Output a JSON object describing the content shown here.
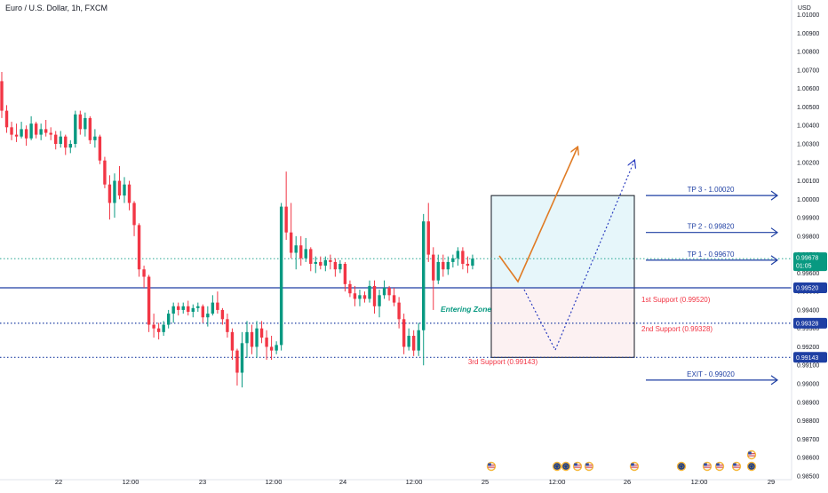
{
  "header": {
    "title": "Euro / U.S. Dollar, 1h, FXCM",
    "currency": "USD"
  },
  "chart_data": {
    "type": "candlestick",
    "yaxis": {
      "ylim": [
        0.9848,
        1.0108
      ],
      "ticks": [
        "1.01000",
        "1.00900",
        "1.00800",
        "1.00700",
        "1.00600",
        "1.00500",
        "1.00400",
        "1.00300",
        "1.00200",
        "1.00100",
        "1.00000",
        "0.99900",
        "0.99800",
        "0.99700",
        "0.99600",
        "0.99500",
        "0.99400",
        "0.99300",
        "0.99200",
        "0.99100",
        "0.99000",
        "0.98900",
        "0.98800",
        "0.98700",
        "0.98600",
        "0.98500"
      ]
    },
    "xaxis": {
      "ticks": [
        "22",
        "12:00",
        "23",
        "12:00",
        "24",
        "12:00",
        "25",
        "12:00",
        "26",
        "12:00",
        "29"
      ]
    },
    "current_price": {
      "value": "0.99678",
      "timer": "01:05",
      "color": "#089981"
    },
    "price_badges": [
      {
        "value": "0.99520",
        "color": "#1e3fa3"
      },
      {
        "value": "0.99328",
        "color": "#1e3fa3"
      },
      {
        "value": "0.99143",
        "color": "#1e3fa3"
      }
    ],
    "horizontal_lines": [
      {
        "price": 0.9952,
        "style": "solid",
        "color": "#1e3fa3"
      },
      {
        "price": 0.99328,
        "style": "dotted",
        "color": "#1e3fa3"
      },
      {
        "price": 0.99143,
        "style": "dotted",
        "color": "#1e3fa3"
      },
      {
        "price": 0.99678,
        "style": "dotted",
        "color": "#089981"
      }
    ],
    "zones": [
      {
        "name": "profit-zone",
        "from": 0.9952,
        "to": 1.0002,
        "fill": "#e6f6fa"
      },
      {
        "name": "risk-zone",
        "from": 0.99143,
        "to": 0.9952,
        "fill": "#fcf1f2"
      }
    ],
    "targets": [
      {
        "label": "TP 3 - 1.00020",
        "price": 1.0002
      },
      {
        "label": "TP 2 - 0.99820",
        "price": 0.9982
      },
      {
        "label": "TP 1 - 0.99670",
        "price": 0.9967
      },
      {
        "label": "EXIT - 0.99020",
        "price": 0.9902
      }
    ],
    "supports": [
      {
        "label": "1st Support (0.99520)",
        "price": 0.9952
      },
      {
        "label": "2nd Support (0.99328)",
        "price": 0.99328
      },
      {
        "label": "3rd Support (0.99143)",
        "price": 0.99143
      }
    ],
    "annotations": {
      "entering_zone": "Entering Zone"
    },
    "colors": {
      "up": "#089981",
      "down": "#f23645",
      "target": "#1e3fa3",
      "support_text": "#f23645",
      "arrow": "#e07b24"
    },
    "candles": [
      [
        1.0064,
        1.0069,
        1.0044,
        1.0048
      ],
      [
        1.0048,
        1.0051,
        1.0036,
        1.0039
      ],
      [
        1.0039,
        1.0042,
        1.0032,
        1.0035
      ],
      [
        1.0035,
        1.0041,
        1.0031,
        1.0034
      ],
      [
        1.0034,
        1.0042,
        1.0033,
        1.0038
      ],
      [
        1.0038,
        1.004,
        1.0029,
        1.0033
      ],
      [
        1.0033,
        1.0045,
        1.0032,
        1.0041
      ],
      [
        1.0041,
        1.0042,
        1.0033,
        1.0035
      ],
      [
        1.0035,
        1.0041,
        1.0032,
        1.0038
      ],
      [
        1.0038,
        1.0043,
        1.0034,
        1.0036
      ],
      [
        1.0036,
        1.0039,
        1.0032,
        1.0035
      ],
      [
        1.0035,
        1.0037,
        1.0027,
        1.003
      ],
      [
        1.003,
        1.0037,
        1.0028,
        1.0034
      ],
      [
        1.0034,
        1.0035,
        1.0024,
        1.0028
      ],
      [
        1.0028,
        1.0032,
        1.0025,
        1.003
      ],
      [
        1.003,
        1.0048,
        1.0028,
        1.0046
      ],
      [
        1.0046,
        1.0048,
        1.0035,
        1.0038
      ],
      [
        1.0038,
        1.0047,
        1.0034,
        1.0044
      ],
      [
        1.0044,
        1.0045,
        1.003,
        1.0032
      ],
      [
        1.0032,
        1.0038,
        1.0028,
        1.0034
      ],
      [
        1.0034,
        1.0035,
        1.0019,
        1.0021
      ],
      [
        1.0021,
        1.0023,
        1.0006,
        1.0008
      ],
      [
        1.0008,
        1.0013,
        0.9989,
        0.9998
      ],
      [
        0.9998,
        1.0014,
        0.999,
        1.001
      ],
      [
        1.001,
        1.0018,
        1.0,
        1.0002
      ],
      [
        1.0002,
        1.0012,
        0.9998,
        1.0008
      ],
      [
        1.0008,
        1.001,
        0.9994,
        0.9998
      ],
      [
        0.9998,
        0.9999,
        0.998,
        0.9986
      ],
      [
        0.9986,
        0.9987,
        0.9958,
        0.9962
      ],
      [
        0.9962,
        0.9964,
        0.9952,
        0.9958
      ],
      [
        0.9958,
        0.9959,
        0.9928,
        0.9932
      ],
      [
        0.9932,
        0.9938,
        0.9925,
        0.993
      ],
      [
        0.993,
        0.9933,
        0.9924,
        0.9928
      ],
      [
        0.9928,
        0.9934,
        0.9926,
        0.9932
      ],
      [
        0.9932,
        0.994,
        0.993,
        0.9938
      ],
      [
        0.9938,
        0.9944,
        0.9933,
        0.9942
      ],
      [
        0.9942,
        0.9944,
        0.9937,
        0.994
      ],
      [
        0.994,
        0.9944,
        0.9938,
        0.9942
      ],
      [
        0.9942,
        0.9945,
        0.9937,
        0.9939
      ],
      [
        0.9939,
        0.9943,
        0.9936,
        0.9941
      ],
      [
        0.9941,
        0.9944,
        0.9939,
        0.9942
      ],
      [
        0.9942,
        0.9943,
        0.9933,
        0.9936
      ],
      [
        0.9936,
        0.9942,
        0.9931,
        0.9938
      ],
      [
        0.9938,
        0.9948,
        0.9937,
        0.9944
      ],
      [
        0.9944,
        0.995,
        0.9938,
        0.994
      ],
      [
        0.994,
        0.9941,
        0.9932,
        0.9935
      ],
      [
        0.9935,
        0.9938,
        0.9925,
        0.9928
      ],
      [
        0.9928,
        0.993,
        0.9913,
        0.9918
      ],
      [
        0.9918,
        0.9919,
        0.9899,
        0.9906
      ],
      [
        0.9906,
        0.9928,
        0.9898,
        0.9922
      ],
      [
        0.9922,
        0.9934,
        0.9914,
        0.9928
      ],
      [
        0.9928,
        0.9932,
        0.9916,
        0.992
      ],
      [
        0.992,
        0.9934,
        0.9914,
        0.993
      ],
      [
        0.993,
        0.9934,
        0.9922,
        0.9925
      ],
      [
        0.9925,
        0.9929,
        0.9913,
        0.992
      ],
      [
        0.992,
        0.9926,
        0.9913,
        0.9918
      ],
      [
        0.9918,
        0.9923,
        0.9916,
        0.9921
      ],
      [
        0.9921,
        0.9998,
        0.9918,
        0.9996
      ],
      [
        0.9996,
        1.0015,
        0.9978,
        0.9982
      ],
      [
        0.9982,
        0.9998,
        0.9968,
        0.9971
      ],
      [
        0.9971,
        0.998,
        0.9962,
        0.9975
      ],
      [
        0.9975,
        0.998,
        0.9964,
        0.9968
      ],
      [
        0.9968,
        0.9979,
        0.9966,
        0.9973
      ],
      [
        0.9973,
        0.9974,
        0.9961,
        0.9965
      ],
      [
        0.9965,
        0.9969,
        0.996,
        0.9966
      ],
      [
        0.9966,
        0.9969,
        0.9962,
        0.9964
      ],
      [
        0.9964,
        0.9969,
        0.9961,
        0.9967
      ],
      [
        0.9967,
        0.997,
        0.9962,
        0.9966
      ],
      [
        0.9966,
        0.9968,
        0.9958,
        0.9962
      ],
      [
        0.9962,
        0.9967,
        0.996,
        0.9965
      ],
      [
        0.9965,
        0.9966,
        0.995,
        0.9954
      ],
      [
        0.9954,
        0.9956,
        0.9947,
        0.9949
      ],
      [
        0.9949,
        0.9953,
        0.9942,
        0.9946
      ],
      [
        0.9946,
        0.9951,
        0.9942,
        0.9948
      ],
      [
        0.9948,
        0.995,
        0.9944,
        0.9946
      ],
      [
        0.9946,
        0.9956,
        0.9944,
        0.9953
      ],
      [
        0.9953,
        0.9956,
        0.9938,
        0.9942
      ],
      [
        0.9942,
        0.9951,
        0.9936,
        0.9948
      ],
      [
        0.9948,
        0.9956,
        0.9946,
        0.9952
      ],
      [
        0.9952,
        0.9953,
        0.9945,
        0.9948
      ],
      [
        0.9948,
        0.9952,
        0.9942,
        0.9944
      ],
      [
        0.9944,
        0.9947,
        0.993,
        0.9935
      ],
      [
        0.9935,
        0.9938,
        0.9916,
        0.992
      ],
      [
        0.992,
        0.993,
        0.9918,
        0.9926
      ],
      [
        0.9926,
        0.9929,
        0.9915,
        0.9918
      ],
      [
        0.9918,
        0.9933,
        0.9915,
        0.9929
      ],
      [
        0.9929,
        0.9992,
        0.991,
        0.9988
      ],
      [
        0.9988,
        0.9998,
        0.9966,
        0.997
      ],
      [
        0.997,
        0.9974,
        0.994,
        0.9956
      ],
      [
        0.9956,
        0.997,
        0.9954,
        0.9966
      ],
      [
        0.9966,
        0.997,
        0.9958,
        0.9962
      ],
      [
        0.9962,
        0.9969,
        0.9959,
        0.9966
      ],
      [
        0.9966,
        0.997,
        0.9963,
        0.9968
      ],
      [
        0.9968,
        0.9974,
        0.9964,
        0.9972
      ],
      [
        0.9972,
        0.9974,
        0.9962,
        0.9965
      ],
      [
        0.9965,
        0.9969,
        0.996,
        0.9964
      ],
      [
        0.9964,
        0.997,
        0.9962,
        0.99678
      ]
    ]
  }
}
